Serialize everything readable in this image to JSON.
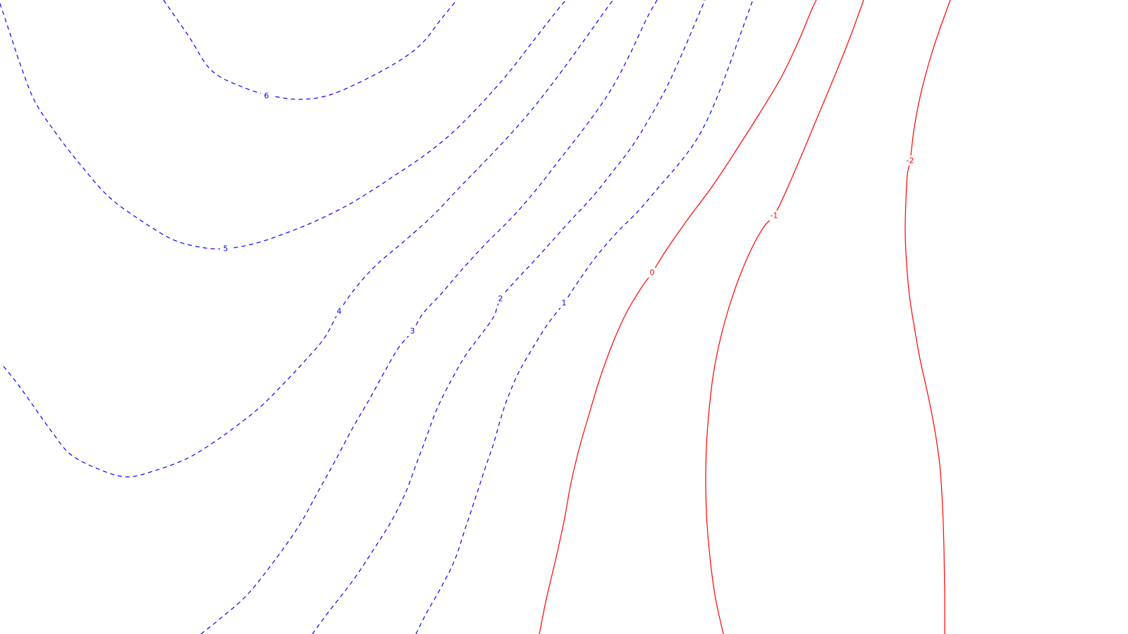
{
  "chart_data": {
    "type": "contour",
    "title": "",
    "xlabel": "",
    "ylabel": "",
    "grid": false,
    "legend": "none",
    "positive_style": {
      "color": "#0000ff",
      "dash": "dashed"
    },
    "negative_style": {
      "color": "#ff0000",
      "dash": "solid"
    },
    "levels": [
      {
        "value": 6,
        "label": "6",
        "color": "#0000ff",
        "dashed": true
      },
      {
        "value": 5,
        "label": "5",
        "color": "#0000ff",
        "dashed": true
      },
      {
        "value": 4,
        "label": "4",
        "color": "#0000ff",
        "dashed": true
      },
      {
        "value": 3,
        "label": "3",
        "color": "#0000ff",
        "dashed": true
      },
      {
        "value": 2,
        "label": "2",
        "color": "#0000ff",
        "dashed": true
      },
      {
        "value": 1,
        "label": "1",
        "color": "#0000ff",
        "dashed": true
      },
      {
        "value": 0,
        "label": "0",
        "color": "#ff0000",
        "dashed": false
      },
      {
        "value": -1,
        "label": "-1",
        "color": "#ff0000",
        "dashed": false
      },
      {
        "value": -2,
        "label": "-2",
        "color": "#ff0000",
        "dashed": false
      }
    ]
  }
}
